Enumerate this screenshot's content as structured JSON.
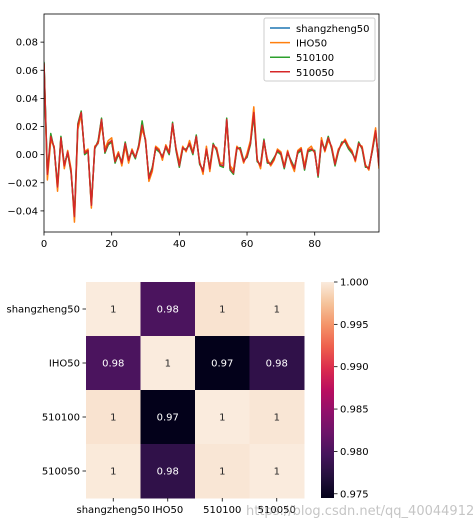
{
  "chart_data": [
    {
      "type": "line",
      "x": [
        0,
        1,
        2,
        3,
        4,
        5,
        6,
        7,
        8,
        9,
        10,
        11,
        12,
        13,
        14,
        15,
        16,
        17,
        18,
        19,
        20,
        21,
        22,
        23,
        24,
        25,
        26,
        27,
        28,
        29,
        30,
        31,
        32,
        33,
        34,
        35,
        36,
        37,
        38,
        39,
        40,
        41,
        42,
        43,
        44,
        45,
        46,
        47,
        48,
        49,
        50,
        51,
        52,
        53,
        54,
        55,
        56,
        57,
        58,
        59,
        60,
        61,
        62,
        63,
        64,
        65,
        66,
        67,
        68,
        69,
        70,
        71,
        72,
        73,
        74,
        75,
        76,
        77,
        78,
        79,
        80,
        81,
        82,
        83,
        84,
        85,
        86,
        87,
        88,
        89,
        90,
        91,
        92,
        93,
        94,
        95,
        96,
        97,
        98,
        99
      ],
      "xlim": [
        0,
        99
      ],
      "ylim": [
        -0.055,
        0.1
      ],
      "xticks": [
        "0",
        "20",
        "40",
        "60",
        "80"
      ],
      "yticks": [
        "−0.04",
        "−0.02",
        "0.00",
        "0.02",
        "0.04",
        "0.06",
        "0.08"
      ],
      "legend_position": "top-right",
      "series": [
        {
          "name": "shangzheng50",
          "color": "#1f77b4",
          "values": [
            0.065,
            -0.015,
            0.012,
            0.005,
            -0.024,
            0.012,
            -0.008,
            0.002,
            -0.012,
            -0.045,
            0.02,
            0.03,
            0.001,
            0.003,
            -0.036,
            0.005,
            0.008,
            0.025,
            0.002,
            0.008,
            0.01,
            -0.005,
            0.001,
            -0.006,
            0.008,
            -0.004,
            0.003,
            -0.002,
            0.006,
            0.02,
            0.01,
            -0.017,
            -0.01,
            0.005,
            0.003,
            -0.002,
            0.006,
            0.001,
            0.022,
            0.004,
            -0.008,
            0.005,
            0.003,
            0.008,
            0.001,
            0.013,
            -0.006,
            -0.012,
            0.004,
            -0.01,
            0.007,
            0.004,
            -0.007,
            -0.008,
            0.025,
            -0.01,
            -0.013,
            0.005,
            0.004,
            -0.005,
            -0.001,
            0.008,
            0.03,
            -0.004,
            -0.008,
            0.01,
            -0.005,
            -0.007,
            -0.003,
            0.003,
            0.001,
            -0.009,
            0.002,
            -0.005,
            -0.01,
            0.002,
            0.004,
            -0.01,
            0.003,
            0.004,
            0.002,
            -0.015,
            0.01,
            0.003,
            0.012,
            0.005,
            -0.007,
            0.003,
            0.008,
            0.01,
            0.005,
            0.002,
            -0.004,
            0.008,
            0.005,
            -0.008,
            -0.01,
            0.003,
            0.017,
            -0.008
          ]
        },
        {
          "name": "IHO50",
          "color": "#ff7f0e",
          "values": [
            0.062,
            -0.018,
            0.01,
            0.006,
            -0.026,
            0.012,
            -0.01,
            0.003,
            -0.01,
            -0.048,
            0.018,
            0.028,
            0.002,
            0.004,
            -0.038,
            0.006,
            0.008,
            0.022,
            0.004,
            0.01,
            0.012,
            -0.004,
            0.002,
            -0.008,
            0.006,
            -0.006,
            0.004,
            -0.002,
            0.005,
            0.018,
            0.011,
            -0.019,
            -0.012,
            0.006,
            0.004,
            -0.004,
            0.007,
            0.002,
            0.02,
            0.005,
            -0.006,
            0.006,
            0.002,
            0.01,
            0.002,
            0.011,
            -0.005,
            -0.014,
            0.006,
            -0.012,
            0.006,
            0.005,
            -0.006,
            -0.006,
            0.022,
            -0.008,
            -0.011,
            0.006,
            0.003,
            -0.006,
            0.001,
            0.01,
            0.034,
            -0.003,
            -0.01,
            0.009,
            -0.003,
            -0.008,
            -0.004,
            0.004,
            0.002,
            -0.008,
            0.003,
            -0.006,
            -0.012,
            0.003,
            0.005,
            -0.008,
            0.004,
            0.006,
            0.001,
            -0.014,
            0.012,
            0.002,
            0.01,
            0.006,
            -0.006,
            0.004,
            0.007,
            0.011,
            0.006,
            0.003,
            -0.005,
            0.007,
            0.006,
            -0.007,
            -0.011,
            0.004,
            0.019,
            -0.01
          ]
        },
        {
          "name": "510100",
          "color": "#2ca02c",
          "values": [
            0.066,
            -0.013,
            0.015,
            0.004,
            -0.022,
            0.013,
            -0.007,
            0.001,
            -0.013,
            -0.043,
            0.022,
            0.031,
            0.0,
            0.002,
            -0.035,
            0.004,
            0.01,
            0.026,
            0.001,
            0.007,
            0.009,
            -0.006,
            0.0,
            -0.005,
            0.009,
            -0.003,
            0.002,
            -0.003,
            0.007,
            0.024,
            0.009,
            -0.016,
            -0.009,
            0.004,
            0.002,
            -0.001,
            0.005,
            0.0,
            0.023,
            0.003,
            -0.009,
            0.004,
            0.004,
            0.007,
            0.0,
            0.014,
            -0.007,
            -0.011,
            0.003,
            -0.009,
            0.008,
            0.003,
            -0.008,
            -0.009,
            0.026,
            -0.011,
            -0.014,
            0.004,
            0.005,
            -0.004,
            -0.002,
            0.007,
            0.028,
            -0.005,
            -0.007,
            0.011,
            -0.006,
            -0.006,
            -0.002,
            0.002,
            0.0,
            -0.01,
            0.001,
            -0.004,
            -0.009,
            0.001,
            0.003,
            -0.011,
            0.002,
            0.003,
            0.003,
            -0.016,
            0.009,
            0.004,
            0.013,
            0.004,
            -0.008,
            0.002,
            0.009,
            0.009,
            0.004,
            0.001,
            -0.003,
            0.009,
            0.004,
            -0.009,
            -0.009,
            0.002,
            0.016,
            -0.007
          ]
        },
        {
          "name": "510050",
          "color": "#d62728",
          "values": [
            0.065,
            -0.014,
            0.013,
            0.005,
            -0.023,
            0.012,
            -0.008,
            0.002,
            -0.012,
            -0.044,
            0.021,
            0.03,
            0.001,
            0.003,
            -0.036,
            0.005,
            0.009,
            0.025,
            0.002,
            0.008,
            0.01,
            -0.005,
            0.001,
            -0.006,
            0.008,
            -0.004,
            0.003,
            -0.002,
            0.006,
            0.021,
            0.01,
            -0.017,
            -0.01,
            0.005,
            0.003,
            -0.002,
            0.006,
            0.001,
            0.022,
            0.004,
            -0.008,
            0.005,
            0.003,
            0.008,
            0.001,
            0.013,
            -0.006,
            -0.012,
            0.004,
            -0.01,
            0.007,
            0.004,
            -0.007,
            -0.008,
            0.025,
            -0.01,
            -0.013,
            0.005,
            0.004,
            -0.005,
            -0.001,
            0.008,
            0.03,
            -0.004,
            -0.008,
            0.01,
            -0.005,
            -0.007,
            -0.003,
            0.003,
            0.001,
            -0.009,
            0.002,
            -0.005,
            -0.01,
            0.002,
            0.004,
            -0.01,
            0.003,
            0.004,
            0.002,
            -0.015,
            0.01,
            0.003,
            0.012,
            0.005,
            -0.007,
            0.003,
            0.008,
            0.01,
            0.005,
            0.002,
            -0.004,
            0.008,
            0.005,
            -0.008,
            -0.01,
            0.003,
            0.017,
            -0.008
          ]
        }
      ]
    },
    {
      "type": "heatmap",
      "rows": [
        "shangzheng50",
        "IHO50",
        "510100",
        "510050"
      ],
      "columns": [
        "shangzheng50",
        "IHO50",
        "510100",
        "510050"
      ],
      "values": [
        [
          1.0,
          0.98,
          0.9995,
          0.9999
        ],
        [
          0.98,
          1.0,
          0.974,
          0.978
        ],
        [
          0.9995,
          0.974,
          1.0,
          0.9997
        ],
        [
          0.9999,
          0.978,
          0.9997,
          1.0
        ]
      ],
      "cell_labels": [
        [
          "1",
          "0.98",
          "1",
          "1"
        ],
        [
          "0.98",
          "1",
          "0.97",
          "0.98"
        ],
        [
          "1",
          "0.97",
          "1",
          "1"
        ],
        [
          "1",
          "0.98",
          "1",
          "1"
        ]
      ],
      "colorbar_range": [
        0.9745,
        1.0
      ],
      "colorbar_ticks": [
        "0.975",
        "0.980",
        "0.985",
        "0.990",
        "0.995",
        "1.000"
      ],
      "colormap": "rocket"
    }
  ],
  "watermark": "https://blog.csdn.net/qq_40044912"
}
